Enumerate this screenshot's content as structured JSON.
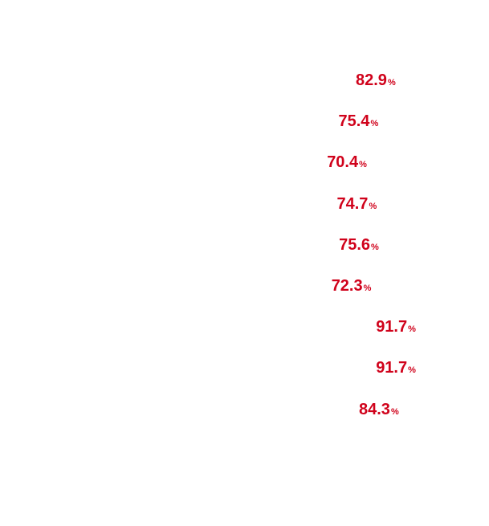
{
  "chart_data": {
    "type": "bar",
    "orientation": "horizontal",
    "unit": "%",
    "accent_color": "#d0021b",
    "values": [
      82.9,
      75.4,
      70.4,
      74.7,
      75.6,
      72.3,
      91.7,
      91.7,
      84.3
    ],
    "labels": [
      "82.9",
      "75.4",
      "70.4",
      "74.7",
      "75.6",
      "72.3",
      "91.7",
      "91.7",
      "84.3"
    ],
    "categories": [],
    "title": "",
    "xlabel": "",
    "ylabel": "",
    "xlim": [
      0,
      100
    ],
    "grid": false,
    "legend": false
  }
}
